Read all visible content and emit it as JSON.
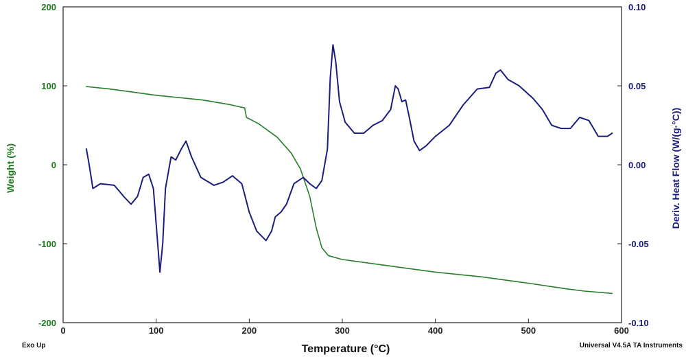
{
  "chart_data": {
    "type": "line",
    "xlabel": "Temperature (°C)",
    "xlim": [
      0,
      600
    ],
    "x_ticks": [
      "0",
      "100",
      "200",
      "300",
      "400",
      "500",
      "600"
    ],
    "y_left": {
      "label": "Weight (%)",
      "lim": [
        -200,
        200
      ],
      "ticks": [
        "200",
        "100",
        "0",
        "-100",
        "-200"
      ],
      "color": "#1e7a1e"
    },
    "y_right": {
      "label": "Deriv. Heat Flow (W/(g·°C))",
      "lim": [
        -0.1,
        0.1
      ],
      "ticks": [
        "0.10",
        "0.05",
        "0.00",
        "-0.05",
        "-0.10"
      ],
      "color": "#1a1a7a"
    },
    "annotations": {
      "bottom_left": "Exo Up",
      "bottom_right": "Universal V4.5A TA Instruments"
    },
    "series": [
      {
        "axis": "left",
        "color": "#2a7d2a",
        "points": [
          [
            25,
            99
          ],
          [
            50,
            96
          ],
          [
            100,
            88
          ],
          [
            150,
            82
          ],
          [
            180,
            76
          ],
          [
            195,
            72
          ],
          [
            197,
            60
          ],
          [
            210,
            52
          ],
          [
            230,
            35
          ],
          [
            245,
            15
          ],
          [
            255,
            -5
          ],
          [
            265,
            -40
          ],
          [
            272,
            -80
          ],
          [
            278,
            -105
          ],
          [
            285,
            -115
          ],
          [
            300,
            -120
          ],
          [
            350,
            -128
          ],
          [
            400,
            -136
          ],
          [
            450,
            -142
          ],
          [
            500,
            -150
          ],
          [
            540,
            -157
          ],
          [
            560,
            -160
          ],
          [
            590,
            -163
          ]
        ]
      },
      {
        "axis": "right",
        "color": "#1c1c7e",
        "points": [
          [
            25,
            0.01
          ],
          [
            28,
            0.0
          ],
          [
            32,
            -0.015
          ],
          [
            40,
            -0.012
          ],
          [
            55,
            -0.013
          ],
          [
            65,
            -0.02
          ],
          [
            73,
            -0.025
          ],
          [
            80,
            -0.02
          ],
          [
            86,
            -0.008
          ],
          [
            92,
            -0.006
          ],
          [
            97,
            -0.015
          ],
          [
            101,
            -0.045
          ],
          [
            104,
            -0.068
          ],
          [
            107,
            -0.05
          ],
          [
            110,
            -0.015
          ],
          [
            116,
            0.005
          ],
          [
            121,
            0.003
          ],
          [
            127,
            0.01
          ],
          [
            132,
            0.015
          ],
          [
            138,
            0.005
          ],
          [
            148,
            -0.008
          ],
          [
            162,
            -0.013
          ],
          [
            172,
            -0.011
          ],
          [
            182,
            -0.007
          ],
          [
            192,
            -0.012
          ],
          [
            200,
            -0.03
          ],
          [
            208,
            -0.042
          ],
          [
            218,
            -0.048
          ],
          [
            224,
            -0.042
          ],
          [
            228,
            -0.033
          ],
          [
            234,
            -0.03
          ],
          [
            240,
            -0.025
          ],
          [
            248,
            -0.012
          ],
          [
            258,
            -0.008
          ],
          [
            265,
            -0.012
          ],
          [
            272,
            -0.015
          ],
          [
            278,
            -0.01
          ],
          [
            284,
            0.01
          ],
          [
            287,
            0.055
          ],
          [
            290,
            0.076
          ],
          [
            293,
            0.065
          ],
          [
            297,
            0.04
          ],
          [
            303,
            0.027
          ],
          [
            313,
            0.02
          ],
          [
            323,
            0.02
          ],
          [
            333,
            0.025
          ],
          [
            343,
            0.028
          ],
          [
            352,
            0.035
          ],
          [
            357,
            0.05
          ],
          [
            360,
            0.048
          ],
          [
            364,
            0.04
          ],
          [
            368,
            0.041
          ],
          [
            372,
            0.03
          ],
          [
            377,
            0.015
          ],
          [
            383,
            0.009
          ],
          [
            390,
            0.012
          ],
          [
            400,
            0.018
          ],
          [
            415,
            0.025
          ],
          [
            430,
            0.038
          ],
          [
            445,
            0.048
          ],
          [
            458,
            0.049
          ],
          [
            465,
            0.058
          ],
          [
            470,
            0.06
          ],
          [
            478,
            0.054
          ],
          [
            490,
            0.05
          ],
          [
            505,
            0.042
          ],
          [
            515,
            0.035
          ],
          [
            525,
            0.025
          ],
          [
            535,
            0.023
          ],
          [
            545,
            0.023
          ],
          [
            555,
            0.03
          ],
          [
            565,
            0.028
          ],
          [
            575,
            0.018
          ],
          [
            585,
            0.018
          ],
          [
            590,
            0.02
          ]
        ]
      }
    ]
  }
}
